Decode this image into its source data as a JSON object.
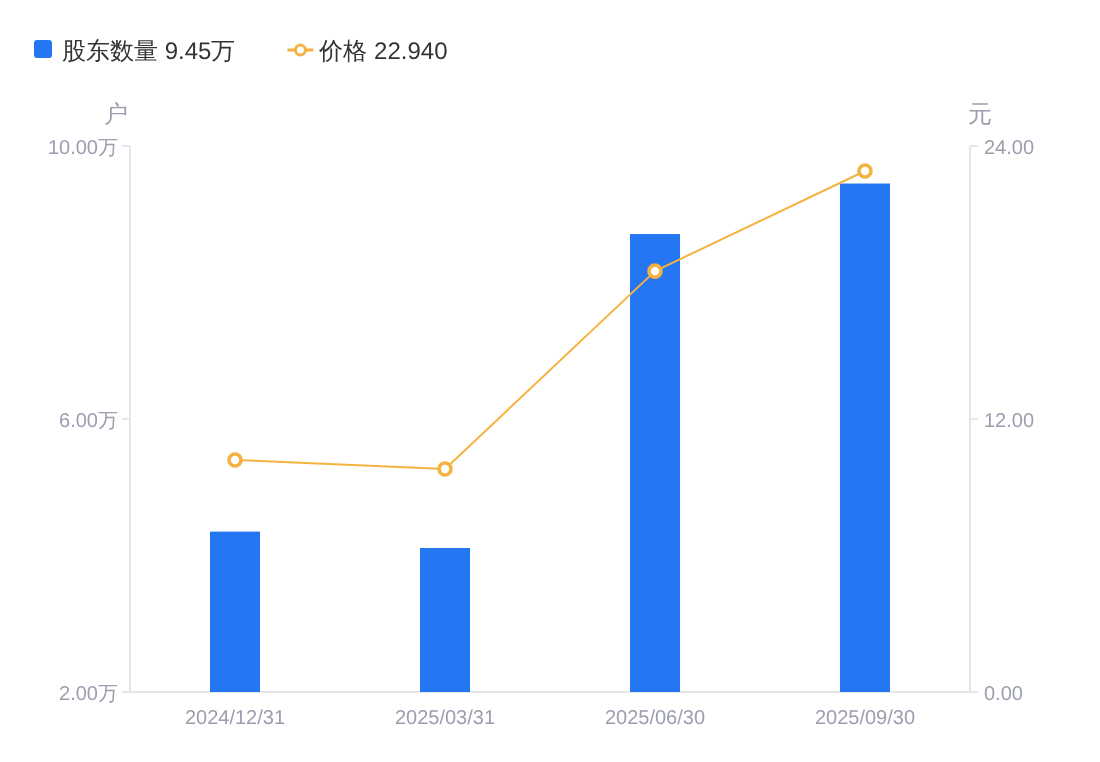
{
  "chart_data": {
    "type": "bar",
    "ylabel": "户",
    "y2label": "元",
    "categories": [
      "2024/12/31",
      "2025/03/31",
      "2025/06/30",
      "2025/09/30"
    ],
    "series": [
      {
        "name": "股东数量 9.45万",
        "color": "#2476f3",
        "values": [
          4.35,
          4.11,
          8.71,
          9.45
        ]
      },
      {
        "name": "价格 22.940",
        "type": "line",
        "axis": "y2",
        "color": "#f5b240",
        "marker": "circle",
        "values": [
          10.2,
          9.8,
          18.5,
          22.9
        ]
      }
    ],
    "ylim": [
      2,
      10
    ],
    "yticks": [
      {
        "value": 2,
        "label": "2.00万"
      },
      {
        "value": 6,
        "label": "6.00万"
      },
      {
        "value": 10,
        "label": "10.00万"
      }
    ],
    "y2lim": [
      0,
      24
    ],
    "y2ticks": [
      {
        "value": 0,
        "label": "0.00"
      },
      {
        "value": 12,
        "label": "12.00"
      },
      {
        "value": 24,
        "label": "24.00"
      }
    ],
    "legend": "top left",
    "grid": false
  }
}
